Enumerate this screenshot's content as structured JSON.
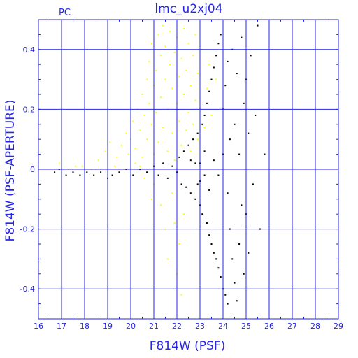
{
  "chart_data": {
    "type": "scatter",
    "title": "lmc_u2xj04",
    "panel_label": "PC",
    "xlabel": "F814W (PSF)",
    "ylabel": "F814W (PSF-APERTURE)",
    "xlim": [
      16,
      29
    ],
    "ylim": [
      -0.5,
      0.5
    ],
    "x_ticks": [
      16,
      17,
      18,
      19,
      20,
      21,
      22,
      23,
      24,
      25,
      26,
      27,
      28,
      29
    ],
    "y_ticks": [
      0.4,
      0.2,
      0,
      -0.2,
      -0.4
    ],
    "y_tick_labels": [
      "0.4",
      "0.2",
      "0",
      "-0.2",
      "-0.4"
    ],
    "grid": true,
    "colors": {
      "axes": "#2626e6",
      "series_black": "#000000",
      "series_yellow": "#ffff00"
    },
    "series": [
      {
        "color": "#ffff00",
        "description": "yellow points",
        "points": [
          [
            17.3,
            0.0
          ],
          [
            17.9,
            0.01
          ],
          [
            18.6,
            0.03
          ],
          [
            18.9,
            0.06
          ],
          [
            19.1,
            0.09
          ],
          [
            19.4,
            0.04
          ],
          [
            19.6,
            0.08
          ],
          [
            19.8,
            0.12
          ],
          [
            19.9,
            0.05
          ],
          [
            20.0,
            0.1
          ],
          [
            20.1,
            0.16
          ],
          [
            20.2,
            0.07
          ],
          [
            20.3,
            0.2
          ],
          [
            20.4,
            0.13
          ],
          [
            20.5,
            0.25
          ],
          [
            20.5,
            0.04
          ],
          [
            20.6,
            0.18
          ],
          [
            20.7,
            0.3
          ],
          [
            20.7,
            0.1
          ],
          [
            20.8,
            0.22
          ],
          [
            20.8,
            0.36
          ],
          [
            20.9,
            0.15
          ],
          [
            20.9,
            0.42
          ],
          [
            21.0,
            0.28
          ],
          [
            21.0,
            0.05
          ],
          [
            21.1,
            0.33
          ],
          [
            21.1,
            0.19
          ],
          [
            21.2,
            0.45
          ],
          [
            21.2,
            0.09
          ],
          [
            21.3,
            0.38
          ],
          [
            21.3,
            0.24
          ],
          [
            21.4,
            0.48
          ],
          [
            21.4,
            0.14
          ],
          [
            21.5,
            0.3
          ],
          [
            21.5,
            0.41
          ],
          [
            21.6,
            0.06
          ],
          [
            21.6,
            0.2
          ],
          [
            21.7,
            0.35
          ],
          [
            21.7,
            0.46
          ],
          [
            21.8,
            0.12
          ],
          [
            21.8,
            0.27
          ],
          [
            21.9,
            0.39
          ],
          [
            21.9,
            0.03
          ],
          [
            22.0,
            0.22
          ],
          [
            22.0,
            0.44
          ],
          [
            22.1,
            0.16
          ],
          [
            22.1,
            0.31
          ],
          [
            22.2,
            0.08
          ],
          [
            22.2,
            0.37
          ],
          [
            22.3,
            0.25
          ],
          [
            22.3,
            0.47
          ],
          [
            22.4,
            0.13
          ],
          [
            22.4,
            0.33
          ],
          [
            22.5,
            0.19
          ],
          [
            22.5,
            0.42
          ],
          [
            22.6,
            0.06
          ],
          [
            22.6,
            0.28
          ],
          [
            22.7,
            0.38
          ],
          [
            22.7,
            0.15
          ],
          [
            22.8,
            0.23
          ],
          [
            22.8,
            0.45
          ],
          [
            22.9,
            0.1
          ],
          [
            22.9,
            0.32
          ],
          [
            23.0,
            0.2
          ],
          [
            23.1,
            0.4
          ],
          [
            23.2,
            0.14
          ],
          [
            23.3,
            0.27
          ],
          [
            23.4,
            0.35
          ],
          [
            23.5,
            0.18
          ],
          [
            23.7,
            0.3
          ],
          [
            21.0,
            -0.05
          ],
          [
            21.3,
            -0.12
          ],
          [
            21.5,
            -0.2
          ],
          [
            21.6,
            -0.3
          ],
          [
            21.8,
            -0.08
          ],
          [
            21.9,
            -0.18
          ],
          [
            22.0,
            -0.35
          ],
          [
            22.1,
            -0.25
          ],
          [
            22.2,
            -0.42
          ],
          [
            22.3,
            -0.15
          ],
          [
            20.6,
            -0.03
          ],
          [
            20.9,
            -0.1
          ],
          [
            21.2,
            -0.02
          ],
          [
            20.4,
            0.01
          ],
          [
            20.2,
            0.02
          ],
          [
            19.7,
            0.0
          ],
          [
            19.3,
            0.01
          ],
          [
            18.3,
            0.0
          ],
          [
            16.9,
            0.02
          ],
          [
            17.6,
            0.01
          ]
        ]
      },
      {
        "color": "#000000",
        "description": "black points",
        "points": [
          [
            16.7,
            -0.01
          ],
          [
            16.9,
            0.0
          ],
          [
            17.2,
            -0.02
          ],
          [
            17.5,
            -0.01
          ],
          [
            17.8,
            -0.02
          ],
          [
            18.1,
            -0.01
          ],
          [
            18.4,
            -0.02
          ],
          [
            18.7,
            -0.01
          ],
          [
            19.0,
            -0.03
          ],
          [
            19.2,
            -0.02
          ],
          [
            19.5,
            -0.01
          ],
          [
            19.8,
            0.0
          ],
          [
            20.1,
            -0.02
          ],
          [
            20.4,
            0.0
          ],
          [
            20.7,
            -0.01
          ],
          [
            21.0,
            0.01
          ],
          [
            21.2,
            -0.02
          ],
          [
            21.4,
            0.02
          ],
          [
            21.6,
            -0.03
          ],
          [
            21.8,
            0.01
          ],
          [
            22.0,
            -0.01
          ],
          [
            22.1,
            0.04
          ],
          [
            22.2,
            -0.05
          ],
          [
            22.3,
            0.06
          ],
          [
            22.4,
            -0.06
          ],
          [
            22.5,
            0.08
          ],
          [
            22.6,
            -0.08
          ],
          [
            22.7,
            0.1
          ],
          [
            22.8,
            -0.1
          ],
          [
            22.9,
            0.12
          ],
          [
            23.0,
            -0.12
          ],
          [
            23.0,
            0.02
          ],
          [
            23.1,
            0.15
          ],
          [
            23.1,
            -0.15
          ],
          [
            23.2,
            0.18
          ],
          [
            23.2,
            -0.02
          ],
          [
            23.3,
            0.22
          ],
          [
            23.3,
            -0.18
          ],
          [
            23.4,
            0.26
          ],
          [
            23.4,
            -0.22
          ],
          [
            23.5,
            0.3
          ],
          [
            23.5,
            -0.25
          ],
          [
            23.6,
            0.34
          ],
          [
            23.6,
            -0.28
          ],
          [
            23.7,
            0.38
          ],
          [
            23.7,
            -0.3
          ],
          [
            23.8,
            0.42
          ],
          [
            23.8,
            -0.33
          ],
          [
            23.9,
            0.45
          ],
          [
            23.9,
            -0.36
          ],
          [
            24.0,
            0.2
          ],
          [
            24.0,
            -0.4
          ],
          [
            24.1,
            0.28
          ],
          [
            24.1,
            -0.42
          ],
          [
            24.2,
            0.36
          ],
          [
            24.2,
            -0.45
          ],
          [
            24.3,
            0.1
          ],
          [
            24.3,
            -0.2
          ],
          [
            24.4,
            0.4
          ],
          [
            24.4,
            -0.3
          ],
          [
            24.5,
            0.15
          ],
          [
            24.5,
            -0.38
          ],
          [
            24.6,
            0.32
          ],
          [
            24.6,
            -0.44
          ],
          [
            24.7,
            0.05
          ],
          [
            24.7,
            -0.25
          ],
          [
            24.8,
            0.44
          ],
          [
            24.8,
            -0.12
          ],
          [
            24.9,
            0.22
          ],
          [
            24.9,
            -0.35
          ],
          [
            25.0,
            0.3
          ],
          [
            25.0,
            -0.15
          ],
          [
            25.1,
            0.12
          ],
          [
            25.1,
            -0.28
          ],
          [
            25.2,
            0.38
          ],
          [
            25.3,
            -0.05
          ],
          [
            25.4,
            0.18
          ],
          [
            25.5,
            0.48
          ],
          [
            25.6,
            -0.2
          ],
          [
            25.8,
            0.05
          ],
          [
            22.8,
            0.02
          ],
          [
            23.0,
            -0.04
          ],
          [
            23.2,
            0.06
          ],
          [
            23.4,
            -0.07
          ],
          [
            23.6,
            0.03
          ],
          [
            23.8,
            -0.02
          ],
          [
            24.0,
            0.05
          ],
          [
            24.2,
            -0.08
          ],
          [
            22.6,
            0.03
          ],
          [
            22.9,
            -0.05
          ]
        ]
      }
    ]
  }
}
